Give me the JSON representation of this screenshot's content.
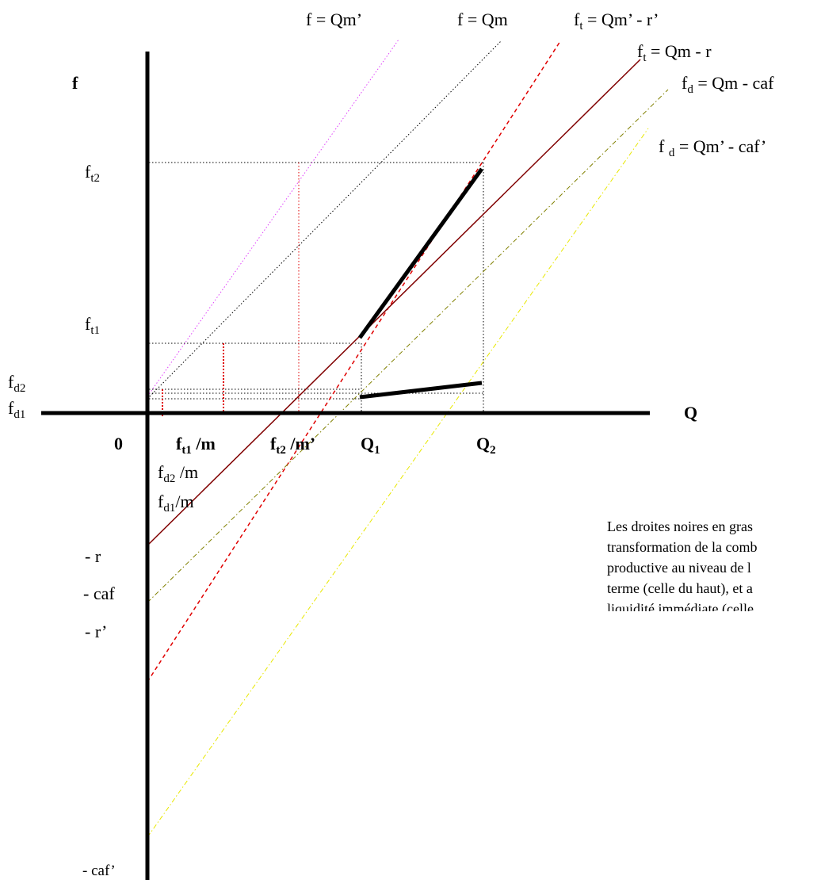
{
  "axes": {
    "y_label": "f",
    "x_label": "Q",
    "origin": "0"
  },
  "lines": [
    {
      "id": "f-qm-prime",
      "label_main": "f = Qm’",
      "color": "#e040fb",
      "style": "dotted"
    },
    {
      "id": "f-qm",
      "label_main": "f = Qm",
      "color": "#000000",
      "style": "dotted"
    },
    {
      "id": "ft-qm-prime-r-prime",
      "label_main": "f",
      "label_sub": "t",
      "label_rest": " = Qm’ - r’",
      "color": "#e00000",
      "style": "dashed"
    },
    {
      "id": "ft-qm-r",
      "label_main": "f",
      "label_sub": "t",
      "label_rest": " = Qm - r",
      "color": "#800000",
      "style": "solid"
    },
    {
      "id": "fd-qm-caf",
      "label_main": "f",
      "label_sub": "d",
      "label_rest": " = Qm - caf",
      "color": "#808000",
      "style": "dashdot"
    },
    {
      "id": "fd-qm-prime-caf-prime",
      "label_main": "f ",
      "label_sub": "d",
      "label_rest": " = Qm’ - caf’",
      "color": "#e8e800",
      "style": "dashdot"
    }
  ],
  "y_ticks": {
    "ft2": {
      "main": "f",
      "sub": "t2"
    },
    "ft1": {
      "main": "f",
      "sub": "t1"
    },
    "fd2": {
      "main": "f",
      "sub": "d2"
    },
    "fd1": {
      "main": "f",
      "sub": "d1"
    },
    "r": "- r",
    "caf": "- caf",
    "r_prime": "- r’",
    "caf_prime": "- caf’"
  },
  "x_ticks": {
    "ft1m": {
      "main": "f",
      "sub": "t1",
      "rest": " /m"
    },
    "ft2m": {
      "main": "f",
      "sub": "t2",
      "rest": " /m’"
    },
    "q1": {
      "main": "Q",
      "sub": "1"
    },
    "q2": {
      "main": "Q",
      "sub": "2"
    },
    "fd2m": {
      "main": "f",
      "sub": "d2",
      "rest": " /m"
    },
    "fd1m": {
      "main": "f",
      "sub": "d1",
      "rest": "/m"
    }
  },
  "note": {
    "lines": [
      "Les droites noires en gras",
      "transformation de la comb",
      "productive au niveau de l",
      "terme (celle du haut), et a",
      "liquidité immédiate (celle"
    ]
  }
}
